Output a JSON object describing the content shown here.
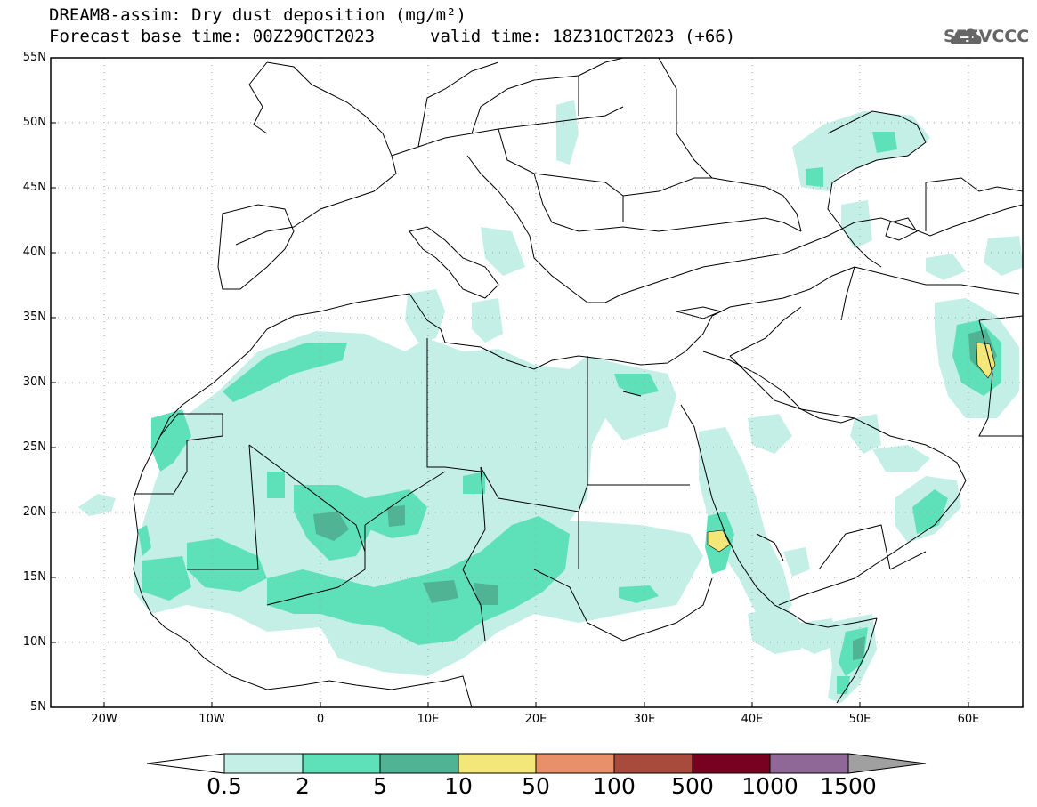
{
  "header": {
    "title_line1": "DREAM8-assim: Dry dust deposition (mg/m²)",
    "title_line2": "Forecast base time: 00Z29OCT2023",
    "valid_time": "valid time: 18Z31OCT2023 (+66)",
    "logo_text": "SEEVCCC",
    "logo_icon": "cloud-logo-icon"
  },
  "map": {
    "projection": "lat-lon",
    "lon_range": [
      -25,
      65
    ],
    "lat_range": [
      5,
      55
    ],
    "lat_labels": [
      "55N",
      "50N",
      "45N",
      "40N",
      "35N",
      "30N",
      "25N",
      "20N",
      "15N",
      "10N",
      "5N"
    ],
    "lon_labels": [
      "20W",
      "10W",
      "0",
      "10E",
      "20E",
      "30E",
      "40E",
      "50E",
      "60E"
    ],
    "grid": "dotted"
  },
  "colorbar": {
    "labels": [
      "0.5",
      "2",
      "5",
      "10",
      "50",
      "100",
      "500",
      "1000",
      "1500"
    ],
    "colors": [
      "#c8f0e8",
      "#5de0b8",
      "#44b890",
      "#f0e878",
      "#e8906a",
      "#a84a3c",
      "#780020",
      "#906898",
      "#a0a0a0"
    ]
  },
  "colors": {
    "light": "#c3efe7",
    "mid": "#5ee1b8",
    "dark": "#4fb394",
    "yellow": "#f3e77a",
    "border": "#000000"
  }
}
